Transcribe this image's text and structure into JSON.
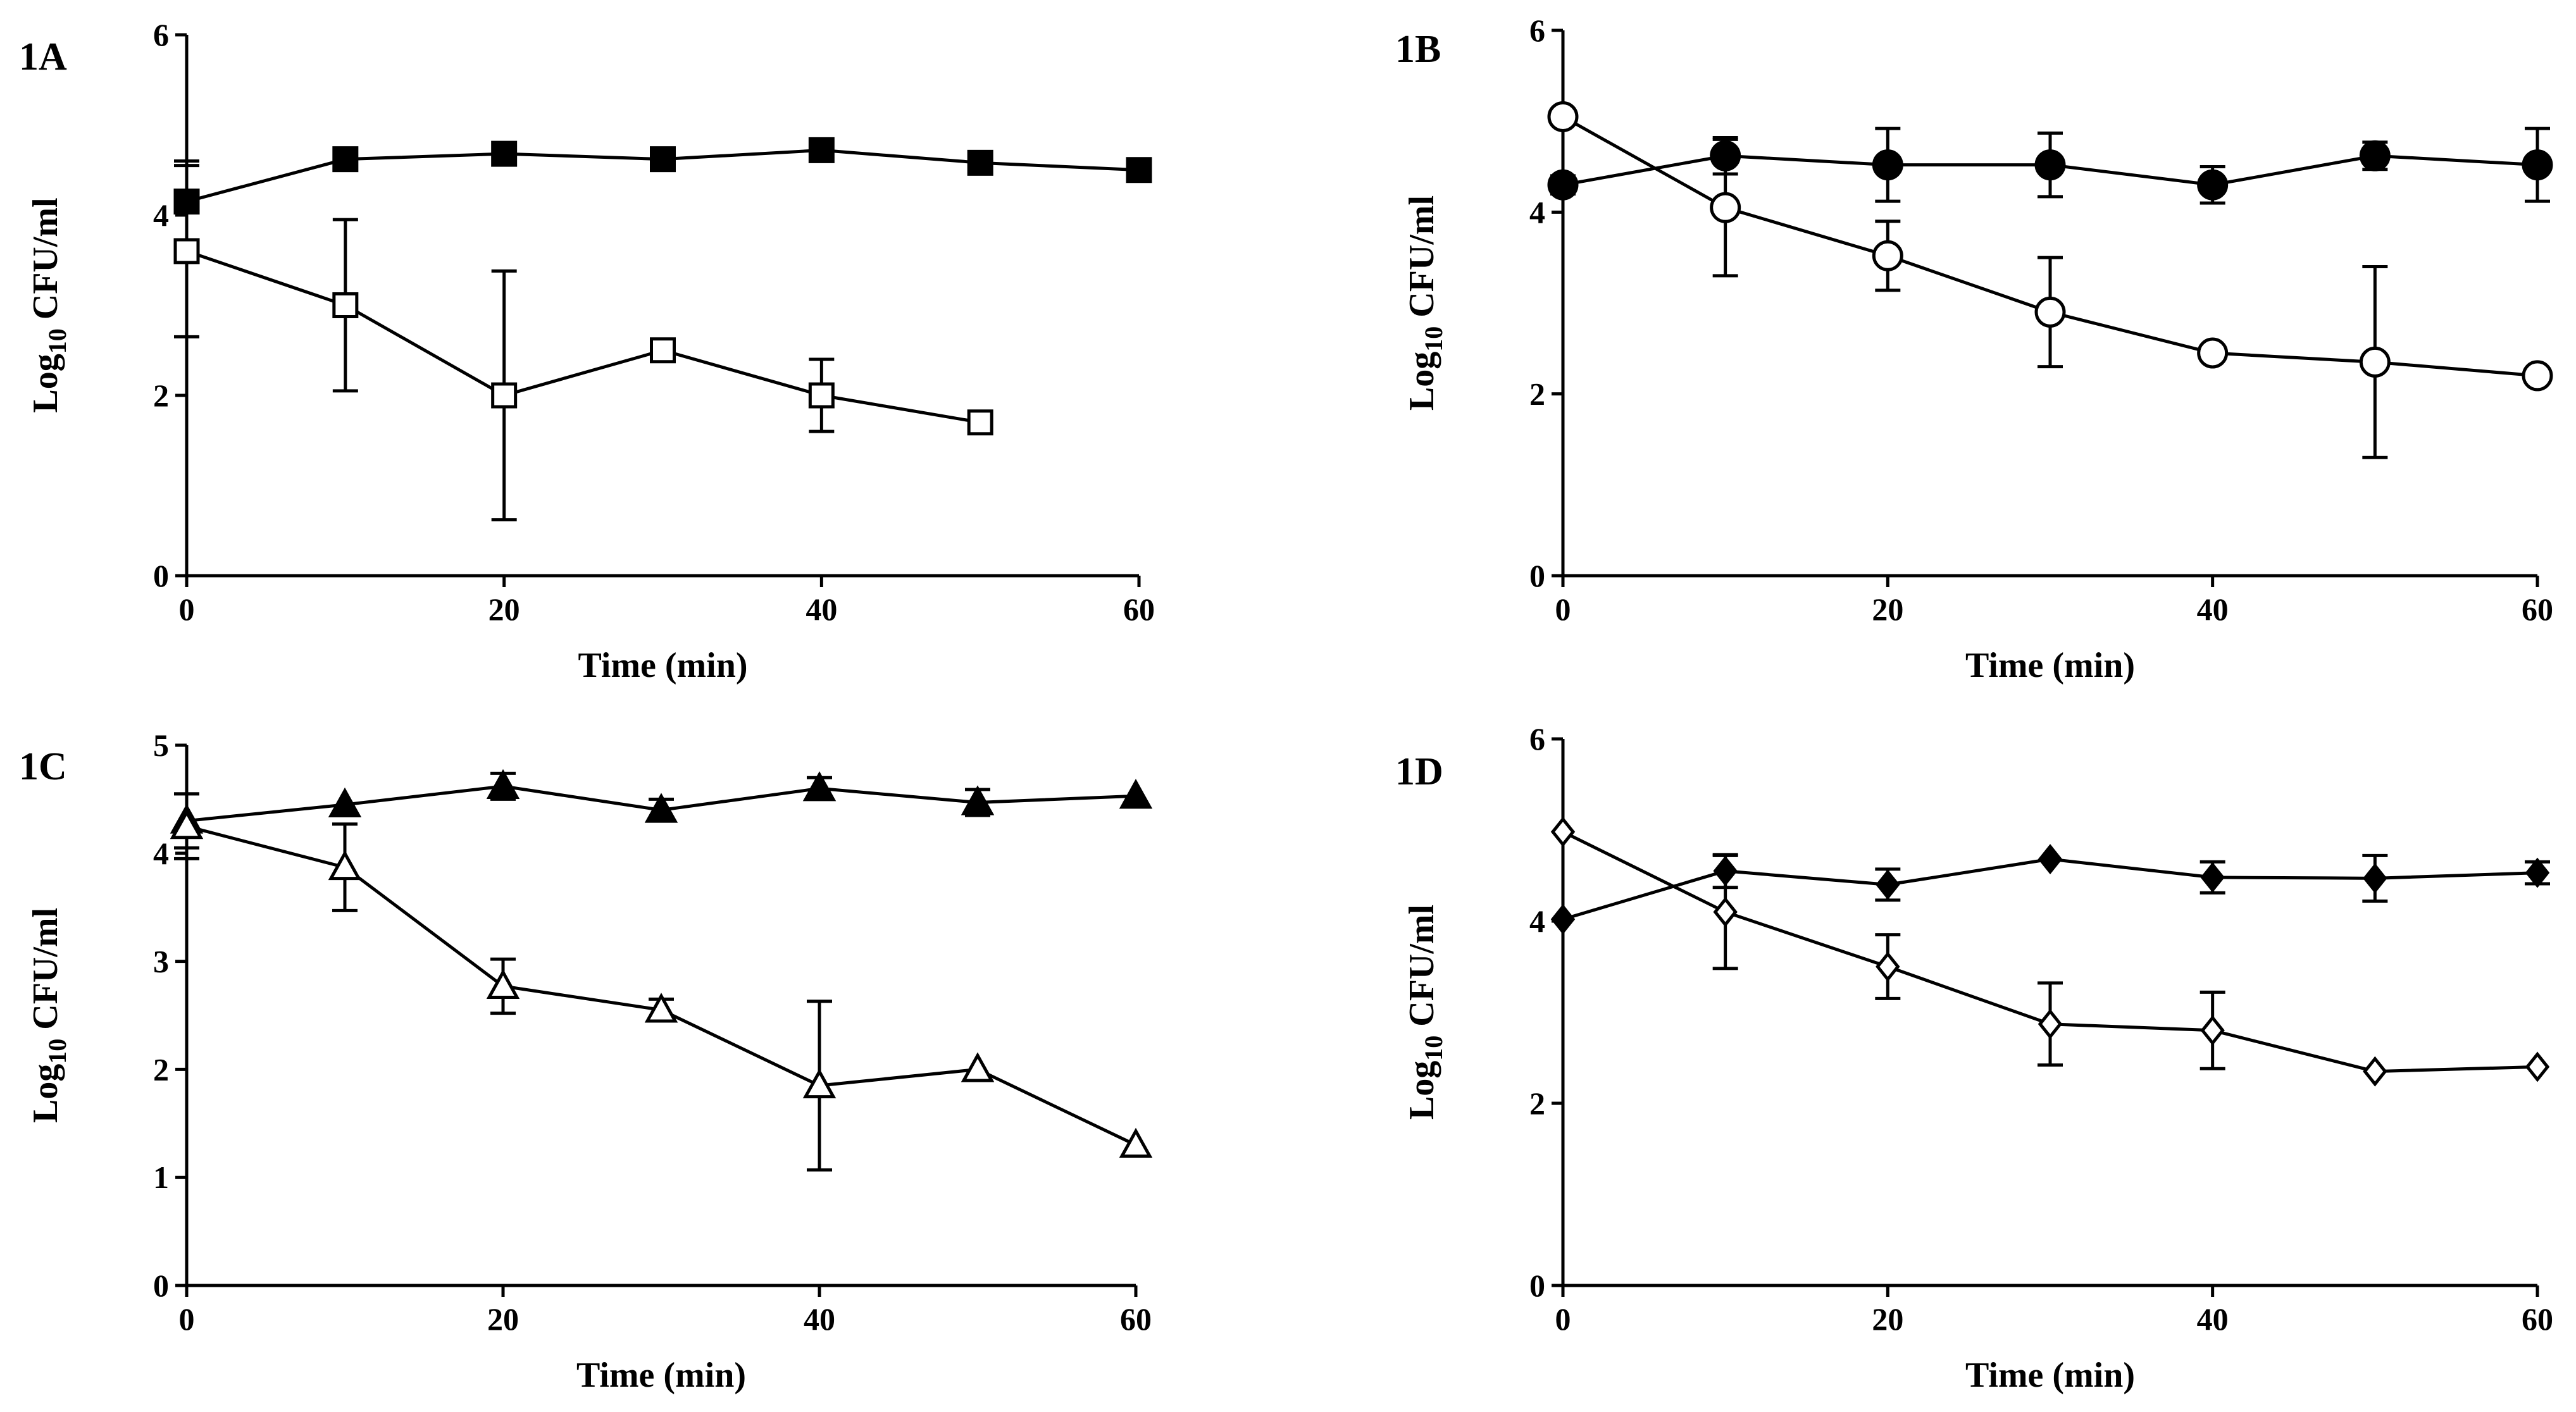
{
  "chart_data": [
    {
      "type": "line",
      "panel_label": "1A",
      "xlabel": "Time (min)",
      "ylabel_base": "Log",
      "ylabel_sub": "10",
      "ylabel_rest": " CFU/ml",
      "xlim": [
        0,
        60
      ],
      "ylim": [
        0,
        6
      ],
      "xticks": [
        0,
        20,
        40,
        60
      ],
      "yticks": [
        0,
        2,
        4,
        6
      ],
      "series": [
        {
          "marker": "square",
          "filled": true,
          "x": [
            0,
            10,
            20,
            30,
            40,
            50,
            60
          ],
          "y": [
            4.15,
            4.62,
            4.68,
            4.62,
            4.72,
            4.58,
            4.5
          ],
          "err": [
            0.45,
            0,
            0,
            0,
            0,
            0,
            0
          ]
        },
        {
          "marker": "square",
          "filled": false,
          "x": [
            0,
            10,
            20,
            30,
            40,
            50
          ],
          "y": [
            3.6,
            3.0,
            2.0,
            2.5,
            2.0,
            1.7
          ],
          "err": [
            0.95,
            0.95,
            1.38,
            0,
            0.4,
            0
          ]
        }
      ]
    },
    {
      "type": "line",
      "panel_label": "1B",
      "xlabel": "Time (min)",
      "ylabel_base": "Log",
      "ylabel_sub": "10",
      "ylabel_rest": " CFU/ml",
      "xlim": [
        0,
        60
      ],
      "ylim": [
        0,
        6
      ],
      "xticks": [
        0,
        20,
        40,
        60
      ],
      "yticks": [
        0,
        2,
        4,
        6
      ],
      "series": [
        {
          "marker": "circle",
          "filled": true,
          "x": [
            0,
            10,
            20,
            30,
            40,
            50,
            60
          ],
          "y": [
            4.3,
            4.62,
            4.52,
            4.52,
            4.3,
            4.62,
            4.52
          ],
          "err": [
            0.1,
            0.2,
            0.4,
            0.35,
            0.2,
            0.15,
            0.4
          ]
        },
        {
          "marker": "circle",
          "filled": false,
          "x": [
            0,
            10,
            20,
            30,
            40,
            50,
            60
          ],
          "y": [
            5.05,
            4.05,
            3.52,
            2.9,
            2.45,
            2.35,
            2.2
          ],
          "err": [
            0,
            0.75,
            0.38,
            0.6,
            0,
            1.05,
            0
          ]
        }
      ]
    },
    {
      "type": "line",
      "panel_label": "1C",
      "xlabel": "Time (min)",
      "ylabel_base": "Log",
      "ylabel_sub": "10",
      "ylabel_rest": " CFU/ml",
      "xlim": [
        0,
        60
      ],
      "ylim": [
        0,
        5
      ],
      "xticks": [
        0,
        20,
        40,
        60
      ],
      "yticks": [
        0,
        1,
        2,
        3,
        4,
        5
      ],
      "series": [
        {
          "marker": "triangle",
          "filled": true,
          "x": [
            0,
            10,
            20,
            30,
            40,
            50,
            60
          ],
          "y": [
            4.3,
            4.45,
            4.62,
            4.4,
            4.6,
            4.47,
            4.53
          ],
          "err": [
            0.25,
            0,
            0.12,
            0.1,
            0.1,
            0.12,
            0
          ]
        },
        {
          "marker": "triangle",
          "filled": false,
          "x": [
            0,
            10,
            20,
            30,
            40,
            50,
            60
          ],
          "y": [
            4.25,
            3.87,
            2.77,
            2.55,
            1.85,
            2.0,
            1.3
          ],
          "err": [
            0.3,
            0.4,
            0.25,
            0.1,
            0.78,
            0,
            0
          ]
        }
      ]
    },
    {
      "type": "line",
      "panel_label": "1D",
      "xlabel": "Time (min)",
      "ylabel_base": "Log",
      "ylabel_sub": "10",
      "ylabel_rest": " CFU/ml",
      "xlim": [
        0,
        60
      ],
      "ylim": [
        0,
        6
      ],
      "xticks": [
        0,
        20,
        40,
        60
      ],
      "yticks": [
        0,
        2,
        4,
        6
      ],
      "series": [
        {
          "marker": "diamond",
          "filled": true,
          "x": [
            0,
            10,
            20,
            30,
            40,
            50,
            60
          ],
          "y": [
            4.02,
            4.55,
            4.4,
            4.68,
            4.48,
            4.47,
            4.53
          ],
          "err": [
            0,
            0.18,
            0.17,
            0,
            0.17,
            0.25,
            0.12
          ]
        },
        {
          "marker": "diamond",
          "filled": false,
          "x": [
            0,
            10,
            20,
            30,
            40,
            50,
            60
          ],
          "y": [
            4.98,
            4.1,
            3.5,
            2.87,
            2.8,
            2.35,
            2.4
          ],
          "err": [
            0,
            0.62,
            0.35,
            0.45,
            0.42,
            0,
            0
          ]
        }
      ]
    }
  ]
}
